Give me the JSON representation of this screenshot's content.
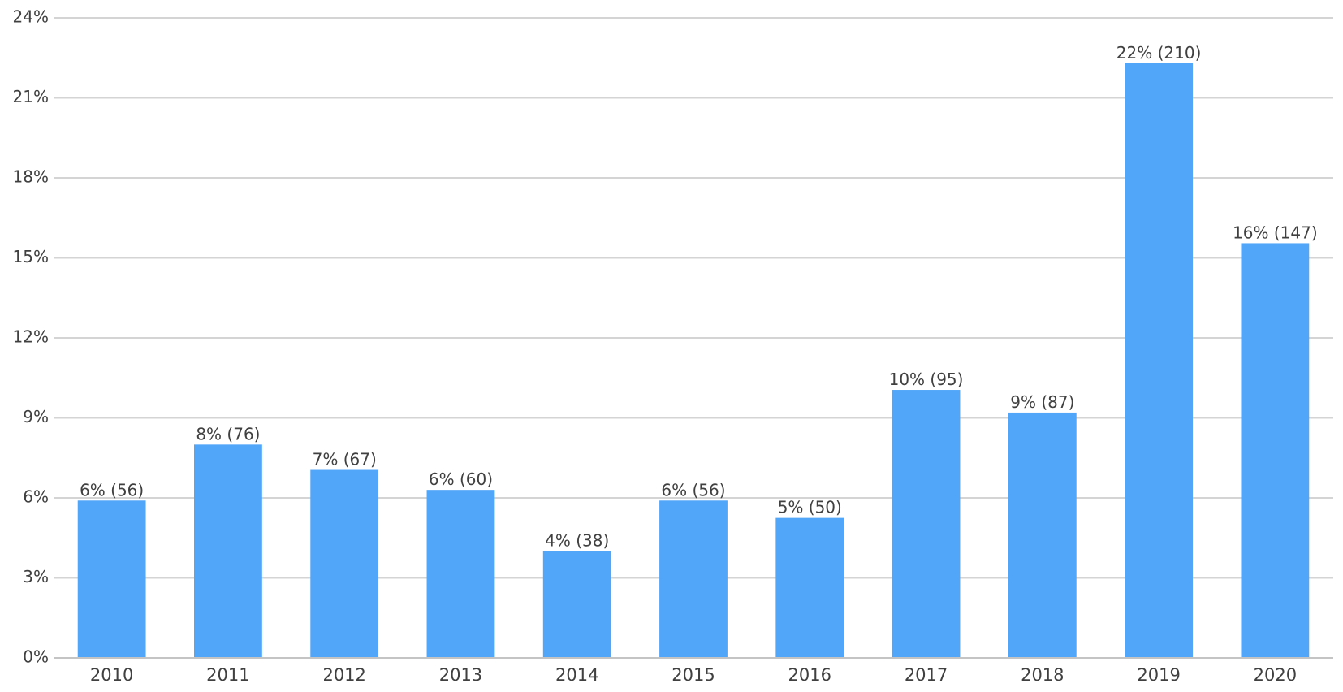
{
  "chart_data": {
    "type": "bar",
    "title": "",
    "xlabel": "",
    "ylabel": "",
    "categories": [
      "2010",
      "2011",
      "2012",
      "2013",
      "2014",
      "2015",
      "2016",
      "2017",
      "2018",
      "2019",
      "2020"
    ],
    "values": [
      5.9,
      8.0,
      7.05,
      6.3,
      4.0,
      5.9,
      5.25,
      10.05,
      9.2,
      22.3,
      15.55
    ],
    "data_labels": [
      "6% (56)",
      "8% (76)",
      "7% (67)",
      "6% (60)",
      "4% (38)",
      "6% (56)",
      "5% (50)",
      "10% (95)",
      "9% (87)",
      "22% (210)",
      "16% (147)"
    ],
    "ylim": [
      0,
      24
    ],
    "yticks": [
      0,
      3,
      6,
      9,
      12,
      15,
      18,
      21,
      24
    ],
    "ytick_labels": [
      "0%",
      "3%",
      "6%",
      "9%",
      "12%",
      "15%",
      "18%",
      "21%",
      "24%"
    ],
    "grid": true,
    "legend": "none",
    "bar_color": "#52a6f9"
  }
}
